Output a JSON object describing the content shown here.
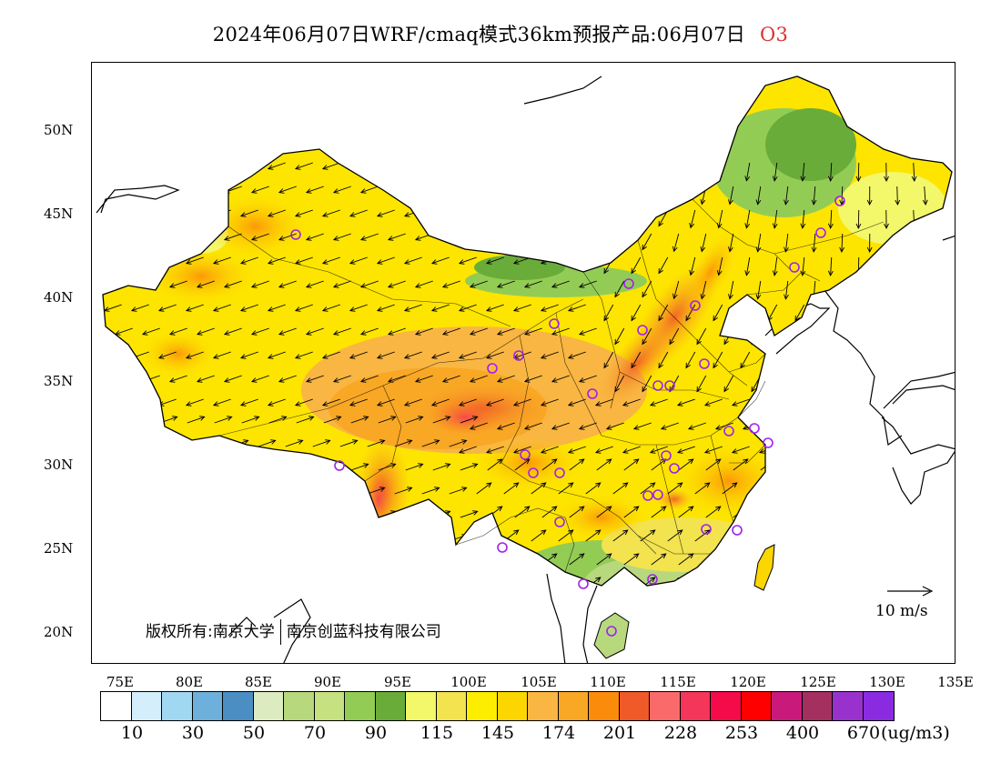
{
  "title": {
    "text": "2024年06月07日WRF/cmaq模式36km预报产品:06月07日",
    "species": "O3",
    "species_color": "#e03030"
  },
  "axes": {
    "lat_labels": [
      "50N",
      "45N",
      "40N",
      "35N",
      "30N",
      "25N",
      "20N"
    ],
    "lon_labels": [
      "75E",
      "80E",
      "85E",
      "90E",
      "95E",
      "100E",
      "105E",
      "110E",
      "115E",
      "120E",
      "125E",
      "130E",
      "135E"
    ]
  },
  "copyright": {
    "prefix": "版权所有:",
    "org1": "南京大学",
    "org2": "南京创蓝科技有限公司"
  },
  "wind_reference": {
    "label": "10 m/s"
  },
  "colorbar": {
    "colors": [
      "#ffffff",
      "#d4eefb",
      "#a0d8f2",
      "#6db0dc",
      "#4a8ec4",
      "#dcebc0",
      "#b8d87e",
      "#c6e180",
      "#93cc55",
      "#6aac3a",
      "#f3f76a",
      "#f2e34f",
      "#fdee00",
      "#fcd600",
      "#f9b642",
      "#f9a825",
      "#fb8b0a",
      "#f05a28",
      "#fb6a6a",
      "#f4365a",
      "#f50a4a",
      "#ff0000",
      "#c91a7c",
      "#a43060",
      "#9932cc",
      "#8a2be2"
    ],
    "labels": [
      "10",
      "30",
      "50",
      "70",
      "90",
      "115",
      "145",
      "174",
      "201",
      "228",
      "253",
      "400",
      "670"
    ],
    "unit": "(ug/m3)"
  },
  "stations_color": "#a020f0"
}
